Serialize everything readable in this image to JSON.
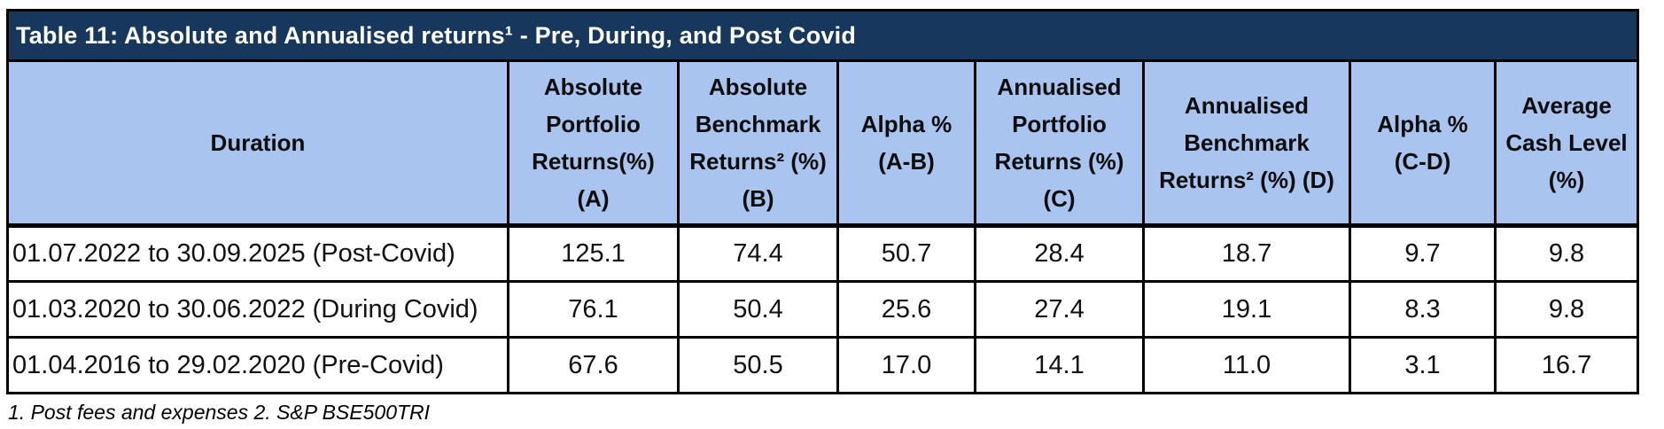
{
  "title": "Table 11: Absolute and Annualised returns¹ - Pre, During, and Post Covid",
  "columns": {
    "duration": "Duration",
    "abs_portfolio": "Absolute\nPortfolio\nReturns(%)\n(A)",
    "abs_benchmark": "Absolute\nBenchmark\nReturns² (%)\n(B)",
    "alpha_ab": "Alpha %\n(A-B)",
    "ann_portfolio": "Annualised\nPortfolio\nReturns (%)\n(C)",
    "ann_benchmark": "Annualised\nBenchmark\nReturns² (%) (D)",
    "alpha_cd": "Alpha %\n(C-D)",
    "avg_cash": "Average\nCash Level\n(%)"
  },
  "rows": [
    {
      "duration": "01.07.2022 to 30.09.2025 (Post-Covid)",
      "values": [
        "125.1",
        "74.4",
        "50.7",
        "28.4",
        "18.7",
        "9.7",
        "9.8"
      ]
    },
    {
      "duration": "01.03.2020 to 30.06.2022 (During Covid)",
      "values": [
        "76.1",
        "50.4",
        "25.6",
        "27.4",
        "19.1",
        "8.3",
        "9.8"
      ]
    },
    {
      "duration": "01.04.2016 to 29.02.2020 (Pre-Covid)",
      "values": [
        "67.6",
        "50.5",
        "17.0",
        "14.1",
        "11.0",
        "3.1",
        "16.7"
      ]
    }
  ],
  "footnote": "1. Post fees and expenses 2. S&P BSE500TRI",
  "colors": {
    "title_bg": "#17375d",
    "title_text": "#ffffff",
    "header_bg": "#a9c4ee",
    "border": "#000000",
    "body_text": "#111111"
  }
}
